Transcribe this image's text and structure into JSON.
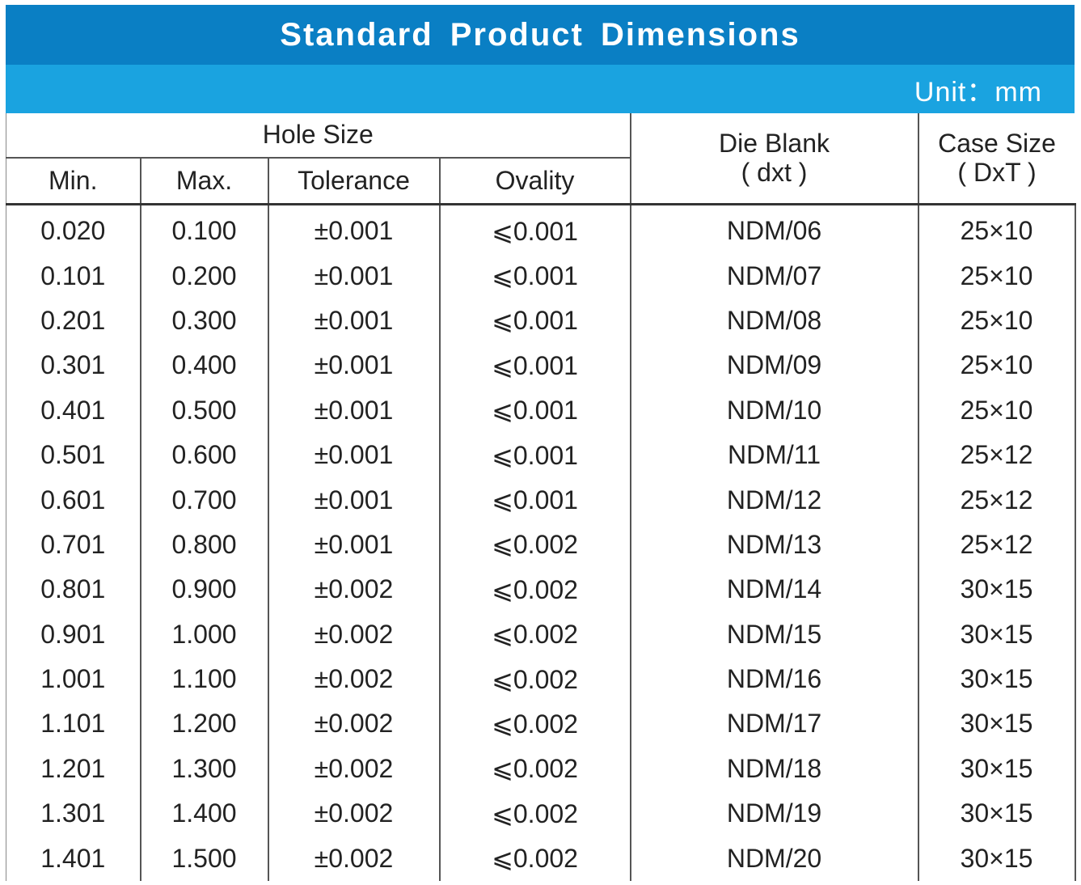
{
  "title": "Standard Product Dimensions",
  "unit": "Unit：mm",
  "headers": {
    "hole_size": "Hole Size",
    "min": "Min.",
    "max": "Max.",
    "tolerance": "Tolerance",
    "ovality": "Ovality",
    "die_blank_line1": "Die Blank",
    "die_blank_line2": "( dxt )",
    "case_size_line1": "Case Size",
    "case_size_line2": "( DxT )"
  },
  "rows": [
    {
      "min": "0.020",
      "max": "0.100",
      "tolerance": "±0.001",
      "ovality": "⩽0.001",
      "die": "NDM/06",
      "case": "25×10"
    },
    {
      "min": "0.101",
      "max": "0.200",
      "tolerance": "±0.001",
      "ovality": "⩽0.001",
      "die": "NDM/07",
      "case": "25×10"
    },
    {
      "min": "0.201",
      "max": "0.300",
      "tolerance": "±0.001",
      "ovality": "⩽0.001",
      "die": "NDM/08",
      "case": "25×10"
    },
    {
      "min": "0.301",
      "max": "0.400",
      "tolerance": "±0.001",
      "ovality": "⩽0.001",
      "die": "NDM/09",
      "case": "25×10"
    },
    {
      "min": "0.401",
      "max": "0.500",
      "tolerance": "±0.001",
      "ovality": "⩽0.001",
      "die": "NDM/10",
      "case": "25×10"
    },
    {
      "min": "0.501",
      "max": "0.600",
      "tolerance": "±0.001",
      "ovality": "⩽0.001",
      "die": "NDM/11",
      "case": "25×12"
    },
    {
      "min": "0.601",
      "max": "0.700",
      "tolerance": "±0.001",
      "ovality": "⩽0.001",
      "die": "NDM/12",
      "case": "25×12"
    },
    {
      "min": "0.701",
      "max": "0.800",
      "tolerance": "±0.001",
      "ovality": "⩽0.002",
      "die": "NDM/13",
      "case": "25×12"
    },
    {
      "min": "0.801",
      "max": "0.900",
      "tolerance": "±0.002",
      "ovality": "⩽0.002",
      "die": "NDM/14",
      "case": "30×15"
    },
    {
      "min": "0.901",
      "max": "1.000",
      "tolerance": "±0.002",
      "ovality": "⩽0.002",
      "die": "NDM/15",
      "case": "30×15"
    },
    {
      "min": "1.001",
      "max": "1.100",
      "tolerance": "±0.002",
      "ovality": "⩽0.002",
      "die": "NDM/16",
      "case": "30×15"
    },
    {
      "min": "1.101",
      "max": "1.200",
      "tolerance": "±0.002",
      "ovality": "⩽0.002",
      "die": "NDM/17",
      "case": "30×15"
    },
    {
      "min": "1.201",
      "max": "1.300",
      "tolerance": "±0.002",
      "ovality": "⩽0.002",
      "die": "NDM/18",
      "case": "30×15"
    },
    {
      "min": "1.301",
      "max": "1.400",
      "tolerance": "±0.002",
      "ovality": "⩽0.002",
      "die": "NDM/19",
      "case": "30×15"
    },
    {
      "min": "1.401",
      "max": "1.500",
      "tolerance": "±0.002",
      "ovality": "⩽0.002",
      "die": "NDM/20",
      "case": "30×15"
    }
  ],
  "colors": {
    "title_bg": "#0a7fc4",
    "unit_bg": "#1aa3e0"
  }
}
